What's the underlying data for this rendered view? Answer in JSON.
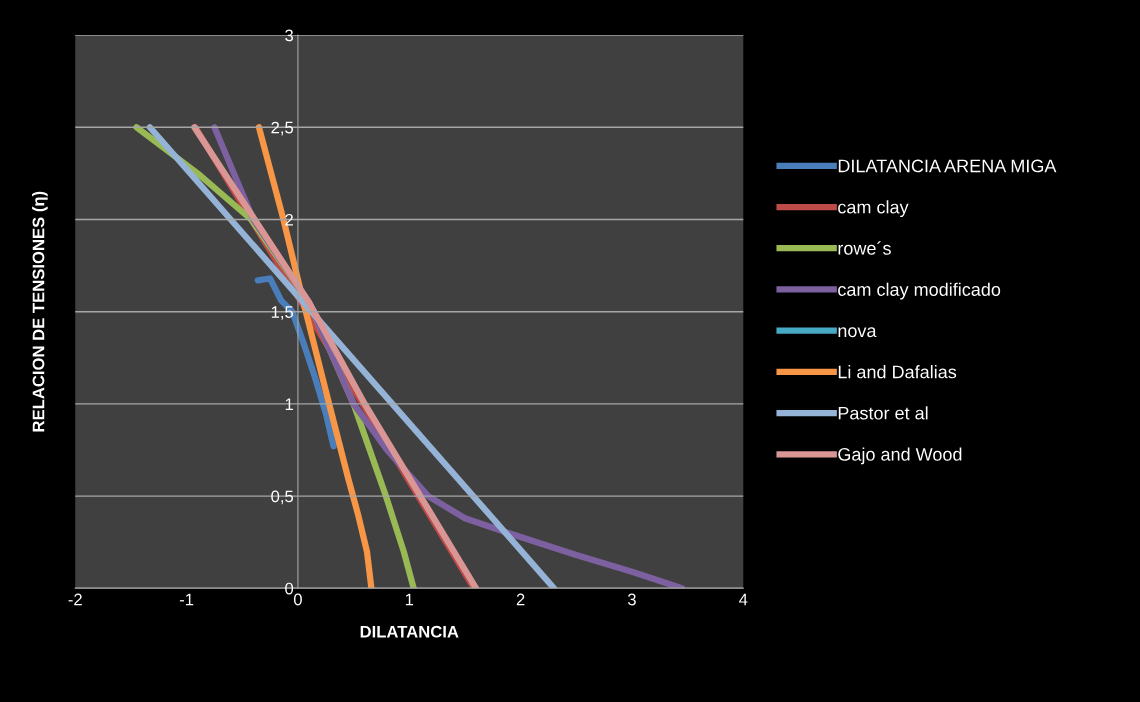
{
  "chart_data": {
    "type": "line",
    "xlabel": "DILATANCIA",
    "ylabel": "RELACION DE TENSIONES (η)",
    "xlim": [
      -2,
      4
    ],
    "xticks": [
      -2,
      -1,
      0,
      1,
      2,
      3,
      4
    ],
    "ylim": [
      0,
      3
    ],
    "yticks": [
      0,
      {
        "value": 0.5,
        "label": "0,5"
      },
      1,
      {
        "value": 1.5,
        "label": "1,5"
      },
      2,
      {
        "value": 2.5,
        "label": "2,5"
      },
      3
    ],
    "grid": "y",
    "legend": "right",
    "marker": "none",
    "line_style": "solid",
    "series": [
      {
        "name": "DILATANCIA ARENA MIGA",
        "color": "#4a7ebb",
        "x": [
          -0.36,
          -0.25,
          -0.15,
          -0.05,
          0.05,
          0.15,
          0.25,
          0.32
        ],
        "values": [
          1.67,
          1.68,
          1.56,
          1.5,
          1.33,
          1.15,
          0.95,
          0.77
        ]
      },
      {
        "name": "cam clay",
        "color": "#be4b48",
        "x": [
          -0.92,
          1.58
        ],
        "values": [
          2.5,
          0
        ]
      },
      {
        "name": "rowe´s",
        "color": "#98b954",
        "x": [
          -1.45,
          -0.9,
          -0.42,
          0.1,
          0.5,
          0.79,
          0.95,
          1.04
        ],
        "values": [
          2.5,
          2.25,
          2.0,
          1.55,
          1.0,
          0.5,
          0.2,
          0
        ]
      },
      {
        "name": "cam clay modificado",
        "color": "#7d60a0",
        "x": [
          -0.75,
          -0.4,
          0.1,
          0.5,
          0.8,
          1.17,
          1.5,
          1.89,
          2.5,
          3.0,
          3.45
        ],
        "values": [
          2.5,
          2.0,
          1.55,
          1.0,
          0.75,
          0.5,
          0.38,
          0.3,
          0.18,
          0.09,
          0
        ]
      },
      {
        "name": "nova",
        "color": "#46aac5"
      },
      {
        "name": "Li and Dafalias",
        "color": "#f79646",
        "x": [
          -0.35,
          -0.13,
          0.05,
          0.28,
          0.45,
          0.54,
          0.62,
          0.66
        ],
        "values": [
          2.5,
          2.0,
          1.55,
          1.0,
          0.6,
          0.4,
          0.2,
          0
        ]
      },
      {
        "name": "Pastor et al",
        "color": "#95b3d7",
        "x": [
          -1.33,
          2.3
        ],
        "values": [
          2.5,
          0
        ]
      },
      {
        "name": "Gajo and Wood",
        "color": "#d99694",
        "x": [
          -0.93,
          0.1,
          0.6,
          1.1,
          1.6
        ],
        "values": [
          2.5,
          1.55,
          1.0,
          0.5,
          0
        ]
      }
    ]
  }
}
